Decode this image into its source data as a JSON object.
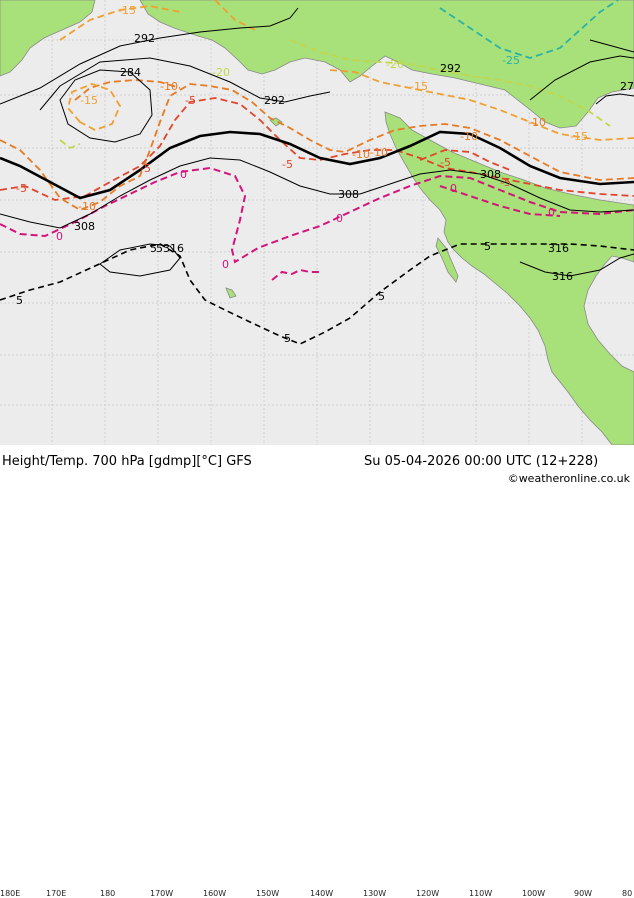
{
  "title_left": "Height/Temp. 700 hPa [gdmp][°C] GFS",
  "title_right": "Su 05-04-2026 00:00 UTC (12+228)",
  "credit": "©weatheronline.co.uk",
  "lon_labels": [
    "180E",
    "170E",
    "180",
    "170W",
    "160W",
    "150W",
    "140W",
    "130W",
    "120W",
    "110W",
    "100W",
    "90W",
    "80"
  ],
  "contour_labels_height": [
    "292",
    "284",
    "292",
    "292",
    "308",
    "308",
    "308",
    "316",
    "316",
    "5316",
    "27"
  ],
  "contour_labels_temp": [
    "-15",
    "-10",
    "-10",
    "-15",
    "-5",
    "-5",
    "-5",
    "-10",
    "-10",
    "-5",
    "-10",
    "-15",
    "-10",
    "-15",
    "-20",
    "-25",
    "-20",
    "-5",
    "-5",
    "0",
    "0",
    "0",
    "0",
    "0",
    "0",
    "5",
    "5",
    "5",
    "5",
    "5"
  ],
  "colors": {
    "ocean": "#ececec",
    "land": "#a8e07a",
    "coast": "#8a8a8a",
    "height": "#000000",
    "t_minus25": "#2ab3a7",
    "t_minus20": "#c2d74a",
    "t_minus15": "#f0a030",
    "t_minus10": "#e87a22",
    "t_minus5": "#e2452a",
    "t_zero": "#d4147a",
    "t_pos5": "#000000"
  }
}
